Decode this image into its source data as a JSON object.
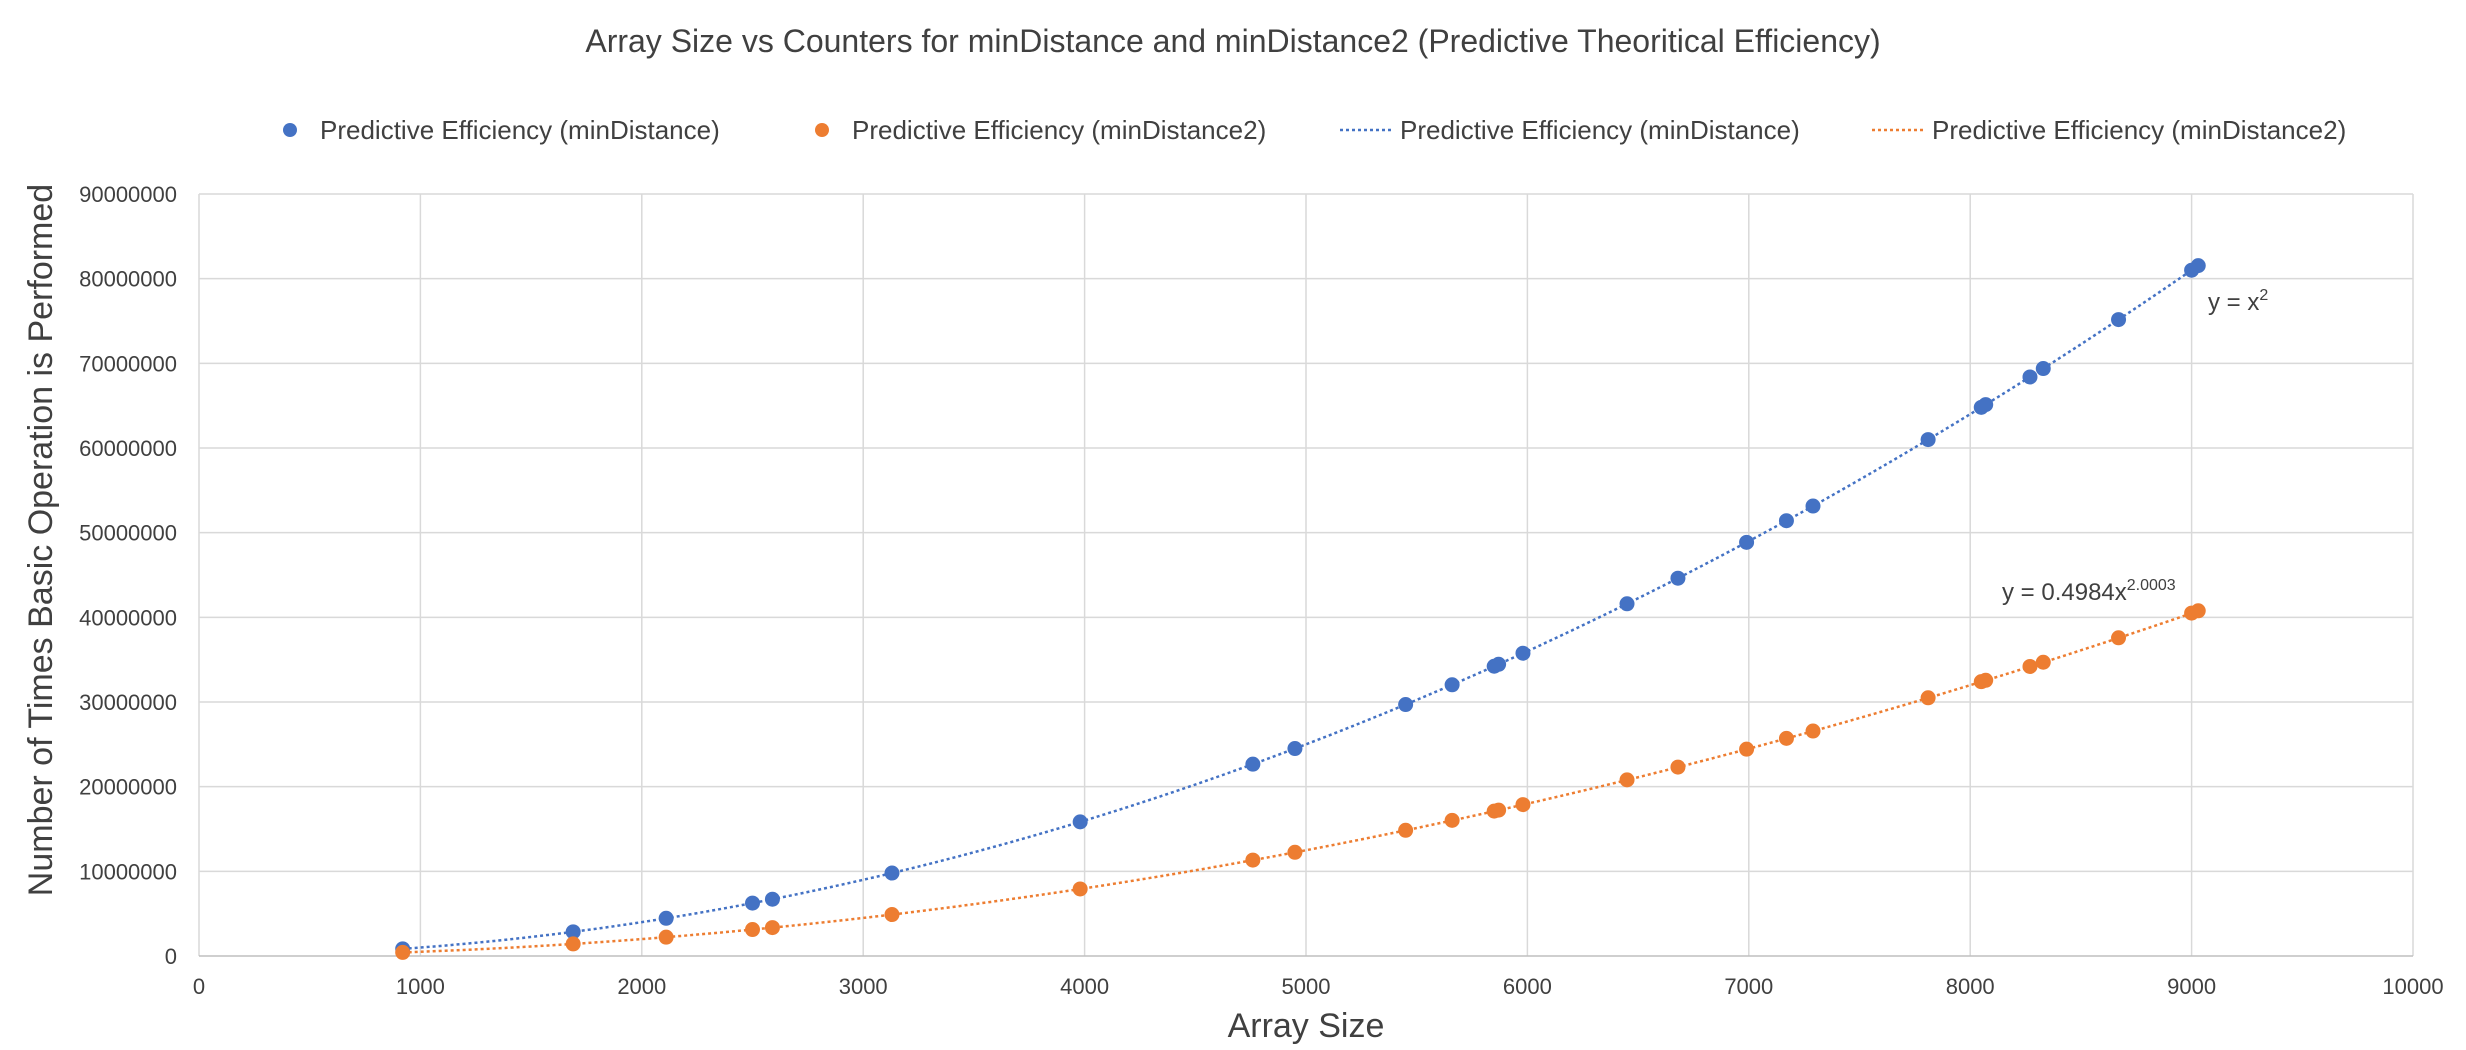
{
  "chart_data": {
    "type": "scatter",
    "title": "Array Size vs Counters for minDistance and minDistance2 (Predictive Theoritical Efficiency)",
    "xlabel": "Array Size",
    "ylabel": "Number of Times Basic Operation is Performed",
    "xlim": [
      0,
      10000
    ],
    "ylim": [
      0,
      90000000
    ],
    "x_ticks": [
      "0",
      "1000",
      "2000",
      "3000",
      "4000",
      "5000",
      "6000",
      "7000",
      "8000",
      "9000",
      "10000"
    ],
    "y_ticks": [
      "0",
      "10000000",
      "20000000",
      "30000000",
      "40000000",
      "50000000",
      "60000000",
      "70000000",
      "80000000",
      "90000000"
    ],
    "grid": true,
    "legend_position": "top",
    "legend": [
      {
        "label": "Predictive Efficiency (minDistance)",
        "kind": "marker",
        "color": "#4472c4"
      },
      {
        "label": "Predictive Efficiency (minDistance2)",
        "kind": "marker",
        "color": "#ed7d31"
      },
      {
        "label": "Predictive Efficiency (minDistance)",
        "kind": "dotted-line",
        "color": "#4472c4"
      },
      {
        "label": "Predictive Efficiency (minDistance2)",
        "kind": "dotted-line",
        "color": "#ed7d31"
      }
    ],
    "x": [
      920,
      1690,
      2110,
      2500,
      2590,
      3130,
      3980,
      4760,
      4950,
      5450,
      5660,
      5850,
      5870,
      5980,
      6450,
      6680,
      6990,
      7170,
      7290,
      7810,
      8050,
      8070,
      8270,
      8330,
      8670,
      9000,
      9030
    ],
    "series": [
      {
        "name": "Predictive Efficiency (minDistance)",
        "color": "#4472c4",
        "values": [
          846400,
          2856100,
          4452100,
          6250000,
          6708100,
          9796900,
          15840400,
          22657600,
          24502500,
          29702500,
          32035600,
          34222500,
          34456900,
          35760400,
          41602500,
          44622400,
          48860100,
          51408900,
          53144100,
          60996100,
          64802500,
          65124900,
          68392900,
          69388900,
          75168900,
          81000000,
          81540900
        ],
        "trendline": {
          "type": "power",
          "a": 1,
          "b": 2,
          "equation": "y = x",
          "exponent": "2"
        }
      },
      {
        "name": "Predictive Efficiency (minDistance2)",
        "color": "#ed7d31",
        "values": [
          422740,
          1427205,
          2225325,
          3123750,
          3353755,
          4897885,
          7918210,
          11328800,
          12250275,
          14851025,
          16017830,
          17111250,
          17228450,
          17880200,
          20801250,
          22311200,
          24430050,
          25704450,
          26572050,
          30498050,
          32401250,
          32562450,
          34196450,
          34694450,
          37584450,
          40500000,
          40770450
        ],
        "trendline": {
          "type": "power",
          "a": 0.4984,
          "b": 2.0003,
          "equation": "y = 0.4984x",
          "exponent": "2.0003"
        }
      }
    ]
  }
}
